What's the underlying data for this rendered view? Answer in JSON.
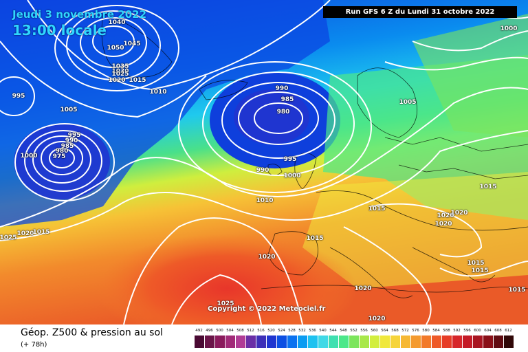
{
  "header": {
    "date_line": "Jeudi 3 novembre 2022",
    "time_line": "13:00 locale",
    "run_banner": "Run GFS 6 Z du Lundi 31 octobre 2022"
  },
  "copyright": "Copyright © 2022 Meteociel.fr",
  "footer": {
    "title": "Géop. Z500 & pression au sol",
    "subtitle": "(+ 78h)"
  },
  "legend": {
    "values": [
      "492",
      "496",
      "500",
      "504",
      "508",
      "512",
      "516",
      "520",
      "524",
      "528",
      "532",
      "536",
      "540",
      "544",
      "548",
      "552",
      "556",
      "560",
      "564",
      "568",
      "572",
      "576",
      "580",
      "584",
      "588",
      "592",
      "596",
      "600",
      "604",
      "608",
      "612"
    ],
    "colors": [
      "#4a0a33",
      "#6a1448",
      "#8a1a5c",
      "#a12a78",
      "#b03c95",
      "#6a2fa6",
      "#3d2fb8",
      "#1f35d0",
      "#0c4fe3",
      "#0a72f0",
      "#0b9cf2",
      "#1ec2f0",
      "#40d9e6",
      "#3fe0b0",
      "#4ce88a",
      "#7be55c",
      "#a8e84a",
      "#d2ee3e",
      "#f0e83c",
      "#f6d43a",
      "#f6b834",
      "#f49a2e",
      "#f27a2a",
      "#ee5a28",
      "#e63c26",
      "#d6262a",
      "#c41a26",
      "#a81420",
      "#8a1018",
      "#600c12",
      "#300808"
    ]
  },
  "isobars": [
    {
      "id": "1040-north",
      "text": "1040"
    },
    {
      "id": "1050",
      "text": "1050"
    },
    {
      "id": "1045",
      "text": "1045"
    },
    {
      "id": "1035",
      "text": "1035"
    },
    {
      "id": "1030",
      "text": "1030"
    },
    {
      "id": "1025-north",
      "text": "1025"
    },
    {
      "id": "1020-north",
      "text": "1020"
    },
    {
      "id": "1015-north",
      "text": "1015"
    },
    {
      "id": "1010-north",
      "text": "1010"
    },
    {
      "id": "1005-west",
      "text": "1005"
    },
    {
      "id": "995-west",
      "text": "995"
    },
    {
      "id": "995-low",
      "text": "995"
    },
    {
      "id": "990-low",
      "text": "990"
    },
    {
      "id": "985-low",
      "text": "985"
    },
    {
      "id": "980-low",
      "text": "980"
    },
    {
      "id": "975-low",
      "text": "975"
    },
    {
      "id": "1000-west",
      "text": "1000"
    },
    {
      "id": "990-atl",
      "text": "990"
    },
    {
      "id": "985-atl",
      "text": "985"
    },
    {
      "id": "980-atl",
      "text": "980"
    },
    {
      "id": "990-atl-s",
      "text": "990"
    },
    {
      "id": "995-atl",
      "text": "995"
    },
    {
      "id": "1000-atl",
      "text": "1000"
    },
    {
      "id": "1010-atl",
      "text": "1010"
    },
    {
      "id": "1005-nor",
      "text": "1005"
    },
    {
      "id": "1000-ne",
      "text": "1000"
    },
    {
      "id": "1015-east",
      "text": "1015"
    },
    {
      "id": "1015-alps",
      "text": "1015"
    },
    {
      "id": "1020-bal1",
      "text": "1020"
    },
    {
      "id": "1020-bal2",
      "text": "1020"
    },
    {
      "id": "1020-bal3",
      "text": "1020"
    },
    {
      "id": "1015-fr",
      "text": "1015"
    },
    {
      "id": "1025-sw",
      "text": "1025"
    },
    {
      "id": "1020-sw",
      "text": "1020"
    },
    {
      "id": "1015-sw",
      "text": "1015"
    },
    {
      "id": "1020-iberia",
      "text": "1020"
    },
    {
      "id": "1020-med",
      "text": "1020"
    },
    {
      "id": "1020-africa",
      "text": "1020"
    },
    {
      "id": "1015-greece1",
      "text": "1015"
    },
    {
      "id": "1015-greece2",
      "text": "1015"
    },
    {
      "id": "1015-se",
      "text": "1015"
    },
    {
      "id": "1025-south",
      "text": "1025"
    }
  ]
}
